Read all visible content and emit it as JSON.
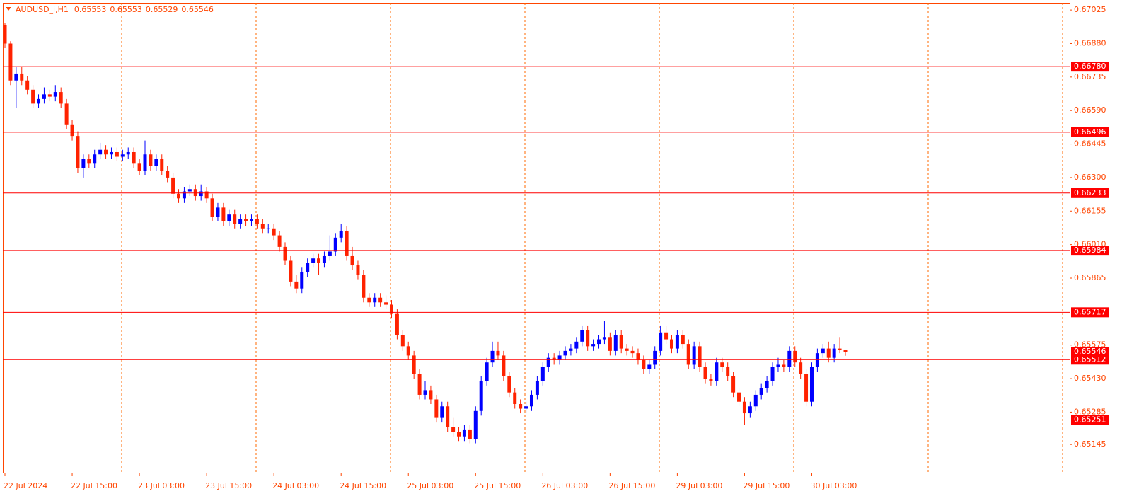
{
  "chart_data": {
    "type": "candlestick",
    "symbol": "AUDUSD_i,H1",
    "bull_color": "#0000ff",
    "bear_color": "#ff2200",
    "level_color": "#ff0000",
    "grid_color": "#ff6a00",
    "text_color": "#ff4500",
    "ylim": [
      0.65023,
      0.67056
    ],
    "yticks": [
      {
        "value": 0.67025,
        "label": "0.67025"
      },
      {
        "value": 0.6688,
        "label": "0.66880"
      },
      {
        "value": 0.66735,
        "label": "0.66735"
      },
      {
        "value": 0.6659,
        "label": "0.66590"
      },
      {
        "value": 0.66445,
        "label": "0.66445"
      },
      {
        "value": 0.663,
        "label": "0.66300"
      },
      {
        "value": 0.66155,
        "label": "0.66155"
      },
      {
        "value": 0.6601,
        "label": "0.66010"
      },
      {
        "value": 0.65865,
        "label": "0.65865"
      },
      {
        "value": 0.65575,
        "label": "0.65575"
      },
      {
        "value": 0.6543,
        "label": "0.65430"
      },
      {
        "value": 0.65285,
        "label": "0.65285"
      },
      {
        "value": 0.65145,
        "label": "0.65145"
      }
    ],
    "levels": [
      {
        "value": 0.6678,
        "label": "0.66780"
      },
      {
        "value": 0.66496,
        "label": "0.66496"
      },
      {
        "value": 0.66233,
        "label": "0.66233"
      },
      {
        "value": 0.65984,
        "label": "0.65984"
      },
      {
        "value": 0.65717,
        "label": "0.65717"
      },
      {
        "value": 0.65512,
        "label": "0.65512"
      },
      {
        "value": 0.65251,
        "label": "0.65251"
      }
    ],
    "xticks": [
      {
        "value": 0,
        "label": "22 Jul 2024"
      },
      {
        "value": 12,
        "label": "22 Jul 15:00"
      },
      {
        "value": 24,
        "label": "23 Jul 03:00"
      },
      {
        "value": 36,
        "label": "23 Jul 15:00"
      },
      {
        "value": 48,
        "label": "24 Jul 03:00"
      },
      {
        "value": 60,
        "label": "24 Jul 15:00"
      },
      {
        "value": 72,
        "label": "25 Jul 03:00"
      },
      {
        "value": 84,
        "label": "25 Jul 15:00"
      },
      {
        "value": 96,
        "label": "26 Jul 03:00"
      },
      {
        "value": 108,
        "label": "26 Jul 15:00"
      },
      {
        "value": 120,
        "label": "29 Jul 03:00"
      },
      {
        "value": 132,
        "label": "29 Jul 15:00"
      },
      {
        "value": 144,
        "label": "30 Jul 03:00"
      }
    ],
    "ohlc": [
      [
        0.6696,
        0.6697,
        0.6686,
        0.6688
      ],
      [
        0.6688,
        0.6689,
        0.667,
        0.6672
      ],
      [
        0.6672,
        0.6678,
        0.666,
        0.6675
      ],
      [
        0.6675,
        0.6678,
        0.667,
        0.6672
      ],
      [
        0.6672,
        0.6674,
        0.6666,
        0.6668
      ],
      [
        0.6668,
        0.667,
        0.666,
        0.6662
      ],
      [
        0.6662,
        0.6666,
        0.666,
        0.6664
      ],
      [
        0.6664,
        0.6669,
        0.6662,
        0.6666
      ],
      [
        0.6666,
        0.6668,
        0.6663,
        0.6665
      ],
      [
        0.6665,
        0.667,
        0.6663,
        0.6667
      ],
      [
        0.6667,
        0.6669,
        0.666,
        0.6662
      ],
      [
        0.6662,
        0.6664,
        0.6651,
        0.6653
      ],
      [
        0.6653,
        0.6655,
        0.6646,
        0.6648
      ],
      [
        0.6648,
        0.665,
        0.6632,
        0.6634
      ],
      [
        0.6634,
        0.664,
        0.663,
        0.6638
      ],
      [
        0.6638,
        0.664,
        0.6634,
        0.6636
      ],
      [
        0.6636,
        0.6642,
        0.6634,
        0.664
      ],
      [
        0.664,
        0.6645,
        0.6638,
        0.6642
      ],
      [
        0.6642,
        0.6644,
        0.6638,
        0.664
      ],
      [
        0.664,
        0.6643,
        0.6638,
        0.6641
      ],
      [
        0.6641,
        0.6643,
        0.6637,
        0.6639
      ],
      [
        0.6639,
        0.6642,
        0.6637,
        0.664
      ],
      [
        0.664,
        0.6643,
        0.6638,
        0.6641
      ],
      [
        0.6641,
        0.6643,
        0.6634,
        0.6636
      ],
      [
        0.6636,
        0.6638,
        0.6631,
        0.6633
      ],
      [
        0.6633,
        0.6646,
        0.6631,
        0.664
      ],
      [
        0.664,
        0.6642,
        0.6633,
        0.6635
      ],
      [
        0.6635,
        0.664,
        0.6633,
        0.6638
      ],
      [
        0.6638,
        0.664,
        0.6631,
        0.6633
      ],
      [
        0.6633,
        0.6635,
        0.6628,
        0.663
      ],
      [
        0.663,
        0.6632,
        0.6621,
        0.6623
      ],
      [
        0.6623,
        0.6625,
        0.6619,
        0.6621
      ],
      [
        0.6621,
        0.6626,
        0.6619,
        0.6624
      ],
      [
        0.6624,
        0.6627,
        0.6622,
        0.6625
      ],
      [
        0.6625,
        0.6627,
        0.662,
        0.6622
      ],
      [
        0.6622,
        0.6627,
        0.662,
        0.6624
      ],
      [
        0.6624,
        0.6626,
        0.6619,
        0.6621
      ],
      [
        0.6621,
        0.6623,
        0.6611,
        0.6613
      ],
      [
        0.6613,
        0.6619,
        0.6611,
        0.6617
      ],
      [
        0.6617,
        0.6619,
        0.6609,
        0.6611
      ],
      [
        0.6611,
        0.6616,
        0.6609,
        0.6614
      ],
      [
        0.6614,
        0.6616,
        0.6608,
        0.661
      ],
      [
        0.661,
        0.6614,
        0.6608,
        0.6612
      ],
      [
        0.6612,
        0.6614,
        0.6609,
        0.6611
      ],
      [
        0.6611,
        0.6614,
        0.6609,
        0.6612
      ],
      [
        0.6612,
        0.6614,
        0.6608,
        0.661
      ],
      [
        0.661,
        0.6612,
        0.6606,
        0.6608
      ],
      [
        0.6608,
        0.661,
        0.6606,
        0.6608
      ],
      [
        0.6608,
        0.661,
        0.6603,
        0.6605
      ],
      [
        0.6605,
        0.6607,
        0.6598,
        0.66
      ],
      [
        0.66,
        0.6602,
        0.6592,
        0.6594
      ],
      [
        0.6594,
        0.6596,
        0.6583,
        0.6585
      ],
      [
        0.6585,
        0.6588,
        0.658,
        0.6582
      ],
      [
        0.6582,
        0.6591,
        0.658,
        0.6589
      ],
      [
        0.6589,
        0.6595,
        0.6587,
        0.6593
      ],
      [
        0.6593,
        0.6597,
        0.6591,
        0.6595
      ],
      [
        0.6595,
        0.6597,
        0.6588,
        0.6593
      ],
      [
        0.6593,
        0.6598,
        0.6591,
        0.6596
      ],
      [
        0.6596,
        0.6605,
        0.6594,
        0.6598
      ],
      [
        0.6598,
        0.6606,
        0.6596,
        0.6604
      ],
      [
        0.6604,
        0.661,
        0.6602,
        0.6607
      ],
      [
        0.6607,
        0.6609,
        0.6594,
        0.6596
      ],
      [
        0.6596,
        0.66,
        0.659,
        0.6592
      ],
      [
        0.6592,
        0.6594,
        0.6586,
        0.6588
      ],
      [
        0.6588,
        0.659,
        0.6576,
        0.6578
      ],
      [
        0.6578,
        0.658,
        0.6574,
        0.6576
      ],
      [
        0.6576,
        0.658,
        0.6574,
        0.6578
      ],
      [
        0.6578,
        0.658,
        0.6574,
        0.6576
      ],
      [
        0.6576,
        0.6579,
        0.6573,
        0.6575
      ],
      [
        0.6575,
        0.6577,
        0.6569,
        0.6571
      ],
      [
        0.6571,
        0.6573,
        0.656,
        0.6562
      ],
      [
        0.6562,
        0.6564,
        0.6555,
        0.6557
      ],
      [
        0.6557,
        0.6559,
        0.6551,
        0.6553
      ],
      [
        0.6553,
        0.6555,
        0.6543,
        0.6545
      ],
      [
        0.6545,
        0.6547,
        0.6534,
        0.6536
      ],
      [
        0.6536,
        0.6542,
        0.6534,
        0.6538
      ],
      [
        0.6538,
        0.654,
        0.6532,
        0.6534
      ],
      [
        0.6534,
        0.6536,
        0.6524,
        0.6526
      ],
      [
        0.6526,
        0.6533,
        0.6524,
        0.6531
      ],
      [
        0.6531,
        0.6533,
        0.652,
        0.6522
      ],
      [
        0.6522,
        0.6526,
        0.6518,
        0.652
      ],
      [
        0.652,
        0.6522,
        0.6516,
        0.6518
      ],
      [
        0.6518,
        0.6523,
        0.6516,
        0.6521
      ],
      [
        0.6521,
        0.6523,
        0.6515,
        0.6517
      ],
      [
        0.6517,
        0.6531,
        0.6515,
        0.6529
      ],
      [
        0.6529,
        0.6544,
        0.6527,
        0.6542
      ],
      [
        0.6542,
        0.6552,
        0.654,
        0.655
      ],
      [
        0.655,
        0.6559,
        0.6548,
        0.6555
      ],
      [
        0.6555,
        0.6559,
        0.6551,
        0.6553
      ],
      [
        0.6553,
        0.6555,
        0.6542,
        0.6544
      ],
      [
        0.6544,
        0.6546,
        0.6535,
        0.6537
      ],
      [
        0.6537,
        0.6539,
        0.653,
        0.6532
      ],
      [
        0.6532,
        0.6534,
        0.6528,
        0.653
      ],
      [
        0.653,
        0.6533,
        0.6528,
        0.6531
      ],
      [
        0.6531,
        0.6538,
        0.6529,
        0.6536
      ],
      [
        0.6536,
        0.6544,
        0.6534,
        0.6542
      ],
      [
        0.6542,
        0.655,
        0.654,
        0.6548
      ],
      [
        0.6548,
        0.6554,
        0.6546,
        0.6552
      ],
      [
        0.6552,
        0.6554,
        0.6549,
        0.6551
      ],
      [
        0.6551,
        0.6555,
        0.6549,
        0.6553
      ],
      [
        0.6553,
        0.6557,
        0.6551,
        0.6555
      ],
      [
        0.6555,
        0.6558,
        0.6553,
        0.6556
      ],
      [
        0.6556,
        0.6561,
        0.6554,
        0.6559
      ],
      [
        0.6559,
        0.6566,
        0.6557,
        0.6564
      ],
      [
        0.6564,
        0.6566,
        0.6555,
        0.6557
      ],
      [
        0.6557,
        0.656,
        0.6555,
        0.6558
      ],
      [
        0.6558,
        0.6562,
        0.6556,
        0.656
      ],
      [
        0.656,
        0.6568,
        0.6558,
        0.6561
      ],
      [
        0.6561,
        0.6563,
        0.6553,
        0.6555
      ],
      [
        0.6555,
        0.6564,
        0.6553,
        0.6562
      ],
      [
        0.6562,
        0.6564,
        0.6554,
        0.6556
      ],
      [
        0.6556,
        0.6558,
        0.6553,
        0.6555
      ],
      [
        0.6555,
        0.6557,
        0.6552,
        0.6554
      ],
      [
        0.6554,
        0.6556,
        0.6549,
        0.6551
      ],
      [
        0.6551,
        0.6553,
        0.6545,
        0.6547
      ],
      [
        0.6547,
        0.6551,
        0.6545,
        0.6549
      ],
      [
        0.6549,
        0.6557,
        0.6547,
        0.6555
      ],
      [
        0.6555,
        0.6566,
        0.6553,
        0.6563
      ],
      [
        0.6563,
        0.6566,
        0.6558,
        0.656
      ],
      [
        0.656,
        0.6562,
        0.6554,
        0.6556
      ],
      [
        0.6556,
        0.6564,
        0.6554,
        0.6562
      ],
      [
        0.6562,
        0.6564,
        0.6556,
        0.6558
      ],
      [
        0.6558,
        0.656,
        0.6547,
        0.6549
      ],
      [
        0.6549,
        0.6559,
        0.6547,
        0.6557
      ],
      [
        0.6557,
        0.6559,
        0.6546,
        0.6548
      ],
      [
        0.6548,
        0.655,
        0.6541,
        0.6543
      ],
      [
        0.6543,
        0.6545,
        0.654,
        0.6542
      ],
      [
        0.6542,
        0.6552,
        0.654,
        0.655
      ],
      [
        0.655,
        0.6552,
        0.6546,
        0.6548
      ],
      [
        0.6548,
        0.655,
        0.6542,
        0.6544
      ],
      [
        0.6544,
        0.6546,
        0.6535,
        0.6537
      ],
      [
        0.6537,
        0.6539,
        0.6531,
        0.6533
      ],
      [
        0.6533,
        0.6535,
        0.6523,
        0.6528
      ],
      [
        0.6528,
        0.6533,
        0.6526,
        0.6531
      ],
      [
        0.6531,
        0.6538,
        0.6529,
        0.6536
      ],
      [
        0.6536,
        0.6541,
        0.6534,
        0.6539
      ],
      [
        0.6539,
        0.6544,
        0.6537,
        0.6542
      ],
      [
        0.6542,
        0.655,
        0.654,
        0.6548
      ],
      [
        0.6548,
        0.6552,
        0.6546,
        0.6549
      ],
      [
        0.6549,
        0.6551,
        0.6546,
        0.6548
      ],
      [
        0.6548,
        0.6557,
        0.6546,
        0.6555
      ],
      [
        0.6555,
        0.6557,
        0.6548,
        0.655
      ],
      [
        0.655,
        0.6552,
        0.6543,
        0.6545
      ],
      [
        0.6545,
        0.6547,
        0.6531,
        0.6533
      ],
      [
        0.6533,
        0.655,
        0.6531,
        0.6548
      ],
      [
        0.6548,
        0.6556,
        0.6546,
        0.6554
      ],
      [
        0.6554,
        0.6558,
        0.6552,
        0.6556
      ],
      [
        0.6556,
        0.6559,
        0.655,
        0.6552
      ],
      [
        0.6552,
        0.6558,
        0.655,
        0.6556
      ],
      [
        0.6556,
        0.6561,
        0.6554,
        0.65553
      ],
      [
        0.65553,
        0.65553,
        0.65529,
        0.65546
      ]
    ]
  }
}
